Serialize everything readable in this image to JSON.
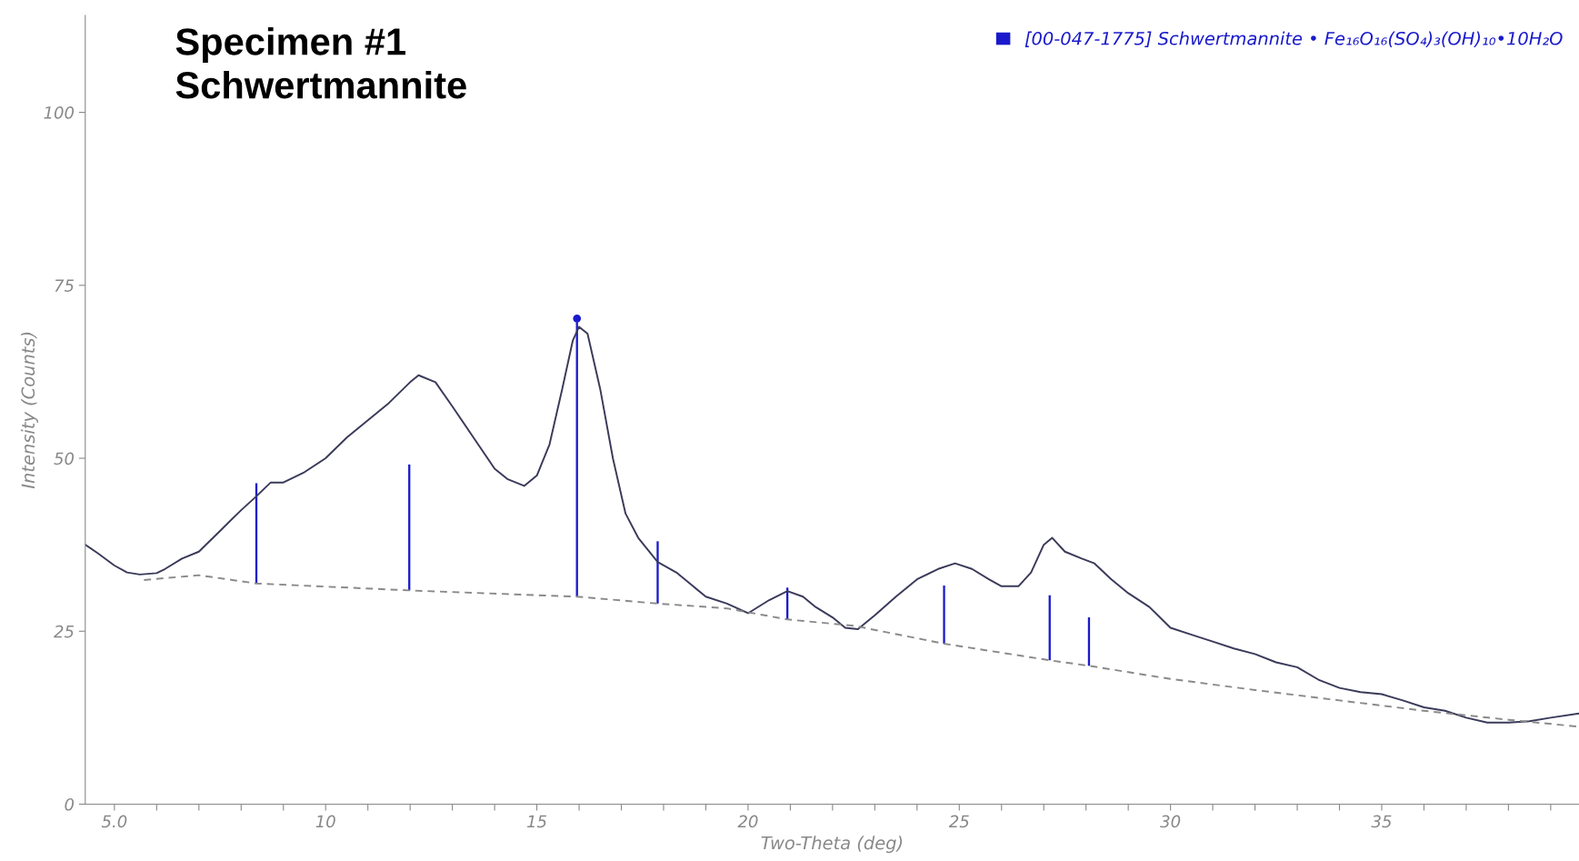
{
  "chart_data": {
    "type": "line",
    "title": "Specimen #1\nSchwertmannite",
    "xlabel": "Two-Theta (deg)",
    "ylabel": "Intensity (Counts)",
    "xlim": [
      4.31,
      39.67
    ],
    "ylim": [
      0,
      114
    ],
    "xticks": [
      {
        "value": 5,
        "label": "5.0"
      },
      {
        "value": 6,
        "label": null
      },
      {
        "value": 7,
        "label": null
      },
      {
        "value": 8,
        "label": null
      },
      {
        "value": 9,
        "label": null
      },
      10,
      {
        "value": 11,
        "label": null
      },
      {
        "value": 12,
        "label": null
      },
      {
        "value": 13,
        "label": null
      },
      {
        "value": 14,
        "label": null
      },
      15,
      {
        "value": 16,
        "label": null
      },
      {
        "value": 17,
        "label": null
      },
      {
        "value": 18,
        "label": null
      },
      {
        "value": 19,
        "label": null
      },
      20,
      {
        "value": 21,
        "label": null
      },
      {
        "value": 22,
        "label": null
      },
      {
        "value": 23,
        "label": null
      },
      {
        "value": 24,
        "label": null
      },
      25,
      {
        "value": 26,
        "label": null
      },
      {
        "value": 27,
        "label": null
      },
      {
        "value": 28,
        "label": null
      },
      {
        "value": 29,
        "label": null
      },
      30,
      {
        "value": 31,
        "label": null
      },
      {
        "value": 32,
        "label": null
      },
      {
        "value": 33,
        "label": null
      },
      {
        "value": 34,
        "label": null
      },
      35,
      {
        "value": 36,
        "label": null
      },
      {
        "value": 37,
        "label": null
      },
      {
        "value": 38,
        "label": null
      },
      {
        "value": 39,
        "label": null
      }
    ],
    "yticks": [
      0,
      25,
      50,
      75,
      100
    ],
    "grid": false,
    "legend": "top right",
    "series": [
      {
        "color": "#3a3a5a",
        "line_style": "solid",
        "x": [
          4.31,
          4.6,
          5.0,
          5.3,
          5.6,
          6.0,
          6.2,
          6.6,
          7.0,
          7.5,
          8.0,
          8.36,
          8.7,
          9.0,
          9.5,
          10.0,
          10.5,
          11.0,
          11.5,
          12.0,
          12.2,
          12.6,
          13.0,
          13.5,
          14.0,
          14.3,
          14.7,
          15.0,
          15.3,
          15.6,
          15.85,
          16.0,
          16.2,
          16.5,
          16.8,
          17.1,
          17.4,
          17.86,
          18.3,
          18.7,
          19.0,
          19.5,
          20.0,
          20.5,
          20.93,
          21.3,
          21.6,
          22.0,
          22.3,
          22.6,
          23.0,
          23.5,
          24.0,
          24.5,
          24.9,
          25.3,
          25.7,
          26.0,
          26.4,
          26.7,
          27.0,
          27.2,
          27.5,
          27.9,
          28.2,
          28.6,
          29.0,
          29.5,
          30.0,
          30.5,
          31.0,
          31.5,
          32.0,
          32.5,
          33.0,
          33.5,
          34.0,
          34.5,
          35.0,
          35.5,
          36.0,
          36.5,
          37.0,
          37.5,
          38.0,
          38.5,
          39.0,
          39.67
        ],
        "values": [
          37.5,
          36.3,
          34.5,
          33.5,
          33.2,
          33.4,
          34.0,
          35.5,
          36.5,
          39.5,
          42.5,
          44.5,
          46.5,
          46.5,
          48.0,
          50.0,
          53.0,
          55.5,
          58.0,
          61.0,
          62.0,
          61.0,
          57.5,
          53.0,
          48.5,
          47.0,
          46.0,
          47.5,
          52.0,
          60.0,
          67.0,
          69.0,
          68.0,
          60.0,
          50.0,
          42.0,
          38.5,
          35.0,
          33.5,
          31.5,
          30.0,
          29.0,
          27.6,
          29.5,
          30.8,
          30.0,
          28.5,
          27.0,
          25.5,
          25.3,
          27.3,
          30.0,
          32.5,
          34.0,
          34.8,
          34.0,
          32.5,
          31.5,
          31.5,
          33.5,
          37.5,
          38.5,
          36.5,
          35.5,
          34.8,
          32.5,
          30.5,
          28.5,
          25.5,
          24.5,
          23.5,
          22.5,
          21.7,
          20.5,
          19.8,
          18.0,
          16.8,
          16.2,
          15.9,
          15.0,
          14.0,
          13.5,
          12.5,
          11.8,
          11.8,
          12.0,
          12.5,
          13.1
        ]
      },
      {
        "color": "#8a8a8a",
        "line_style": "dashed",
        "x": [
          5.7,
          7.0,
          8.36,
          11.98,
          15.95,
          17.86,
          19.5,
          20.93,
          22.5,
          24.64,
          27.14,
          28.07,
          30.0,
          32.0,
          34.0,
          36.0,
          38.0,
          39.67
        ],
        "values": [
          32.4,
          33.1,
          31.9,
          30.9,
          30.0,
          29.0,
          28.3,
          26.7,
          25.8,
          23.2,
          20.8,
          20.0,
          18.1,
          16.5,
          15.0,
          13.5,
          12.2,
          11.2
        ]
      },
      {
        "type": "bar",
        "name": "[00-047-1775] Schwertmannite • Fe₁₆O₁₆(SO₄)₃(OH)₁₀•10H₂O",
        "color": "#1a1acc",
        "x": [
          8.36,
          11.98,
          15.95,
          17.86,
          20.93,
          24.64,
          27.14,
          28.07
        ],
        "base": [
          31.9,
          30.9,
          30.0,
          29.0,
          26.7,
          23.2,
          20.8,
          20.0
        ],
        "values": [
          14.5,
          18.2,
          39.7,
          9.0,
          4.6,
          8.4,
          9.4,
          7.0
        ]
      },
      {
        "type": "scatter",
        "color": "#1a1acc",
        "marker": "circle",
        "x": [
          15.95
        ],
        "values": [
          70.2
        ]
      }
    ]
  }
}
